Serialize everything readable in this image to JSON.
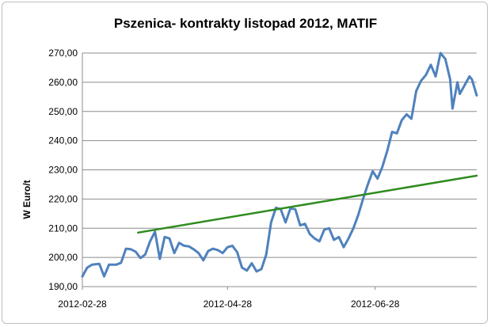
{
  "chart_data": {
    "type": "line",
    "title": "Pszenica- kontrakty listopad 2012, MATIF",
    "ylabel": "W Euro/t",
    "xlabel": "",
    "ylim": [
      190,
      270
    ],
    "yticks": [
      "190,00",
      "200,00",
      "210,00",
      "220,00",
      "230,00",
      "240,00",
      "250,00",
      "260,00",
      "270,00"
    ],
    "ytick_values": [
      190,
      200,
      210,
      220,
      230,
      240,
      250,
      260,
      270
    ],
    "xlim": [
      "2012-02-28",
      "2012-08-09"
    ],
    "xticks": [
      "2012-02-28",
      "2012-04-28",
      "2012-06-28"
    ],
    "grid": true,
    "legend": "none",
    "colors": {
      "price": "#4f81bd",
      "trend": "#2e8b1e"
    },
    "series": [
      {
        "role": "price",
        "points": [
          [
            "2012-02-28",
            193.5
          ],
          [
            "2012-03-01",
            196.5
          ],
          [
            "2012-03-03",
            197.5
          ],
          [
            "2012-03-06",
            197.8
          ],
          [
            "2012-03-08",
            193.5
          ],
          [
            "2012-03-10",
            197.5
          ],
          [
            "2012-03-13",
            197.5
          ],
          [
            "2012-03-15",
            198.2
          ],
          [
            "2012-03-17",
            203.0
          ],
          [
            "2012-03-19",
            202.8
          ],
          [
            "2012-03-21",
            202.0
          ],
          [
            "2012-03-23",
            199.8
          ],
          [
            "2012-03-25",
            201.0
          ],
          [
            "2012-03-27",
            205.5
          ],
          [
            "2012-03-29",
            208.8
          ],
          [
            "2012-03-31",
            199.5
          ],
          [
            "2012-04-02",
            207.0
          ],
          [
            "2012-04-04",
            206.5
          ],
          [
            "2012-04-06",
            201.5
          ],
          [
            "2012-04-08",
            205.0
          ],
          [
            "2012-04-10",
            204.0
          ],
          [
            "2012-04-12",
            203.8
          ],
          [
            "2012-04-14",
            202.8
          ],
          [
            "2012-04-16",
            201.5
          ],
          [
            "2012-04-18",
            199.0
          ],
          [
            "2012-04-20",
            202.2
          ],
          [
            "2012-04-22",
            203.0
          ],
          [
            "2012-04-24",
            202.5
          ],
          [
            "2012-04-26",
            201.5
          ],
          [
            "2012-04-28",
            203.5
          ],
          [
            "2012-04-30",
            204.0
          ],
          [
            "2012-05-02",
            201.8
          ],
          [
            "2012-05-04",
            196.5
          ],
          [
            "2012-05-06",
            195.5
          ],
          [
            "2012-05-08",
            198.0
          ],
          [
            "2012-05-10",
            195.2
          ],
          [
            "2012-05-12",
            196.0
          ],
          [
            "2012-05-14",
            201.0
          ],
          [
            "2012-05-16",
            212.0
          ],
          [
            "2012-05-18",
            217.0
          ],
          [
            "2012-05-20",
            216.5
          ],
          [
            "2012-05-22",
            212.0
          ],
          [
            "2012-05-24",
            216.8
          ],
          [
            "2012-05-26",
            216.5
          ],
          [
            "2012-05-28",
            211.0
          ],
          [
            "2012-05-30",
            211.5
          ],
          [
            "2012-06-01",
            208.0
          ],
          [
            "2012-06-03",
            206.5
          ],
          [
            "2012-06-05",
            205.5
          ],
          [
            "2012-06-07",
            209.5
          ],
          [
            "2012-06-09",
            210.0
          ],
          [
            "2012-06-11",
            206.0
          ],
          [
            "2012-06-13",
            207.0
          ],
          [
            "2012-06-15",
            203.5
          ],
          [
            "2012-06-17",
            206.5
          ],
          [
            "2012-06-19",
            210.0
          ],
          [
            "2012-06-21",
            214.5
          ],
          [
            "2012-06-23",
            220.0
          ],
          [
            "2012-06-25",
            225.0
          ],
          [
            "2012-06-27",
            229.5
          ],
          [
            "2012-06-29",
            227.0
          ],
          [
            "2012-07-01",
            231.0
          ],
          [
            "2012-07-03",
            236.5
          ],
          [
            "2012-07-05",
            243.0
          ],
          [
            "2012-07-07",
            242.5
          ],
          [
            "2012-07-09",
            247.0
          ],
          [
            "2012-07-11",
            249.0
          ],
          [
            "2012-07-13",
            247.5
          ],
          [
            "2012-07-15",
            257.0
          ],
          [
            "2012-07-17",
            260.5
          ],
          [
            "2012-07-19",
            262.5
          ],
          [
            "2012-07-21",
            266.0
          ],
          [
            "2012-07-23",
            262.0
          ],
          [
            "2012-07-25",
            270.0
          ],
          [
            "2012-07-27",
            268.0
          ],
          [
            "2012-07-29",
            261.0
          ],
          [
            "2012-07-30",
            251.0
          ],
          [
            "2012-08-01",
            260.0
          ],
          [
            "2012-08-02",
            256.0
          ],
          [
            "2012-08-04",
            259.0
          ],
          [
            "2012-08-06",
            262.0
          ],
          [
            "2012-08-07",
            261.0
          ],
          [
            "2012-08-09",
            255.5
          ]
        ]
      },
      {
        "role": "trend",
        "points": [
          [
            "2012-03-22",
            208.5
          ],
          [
            "2012-08-09",
            228.0
          ]
        ]
      }
    ]
  }
}
